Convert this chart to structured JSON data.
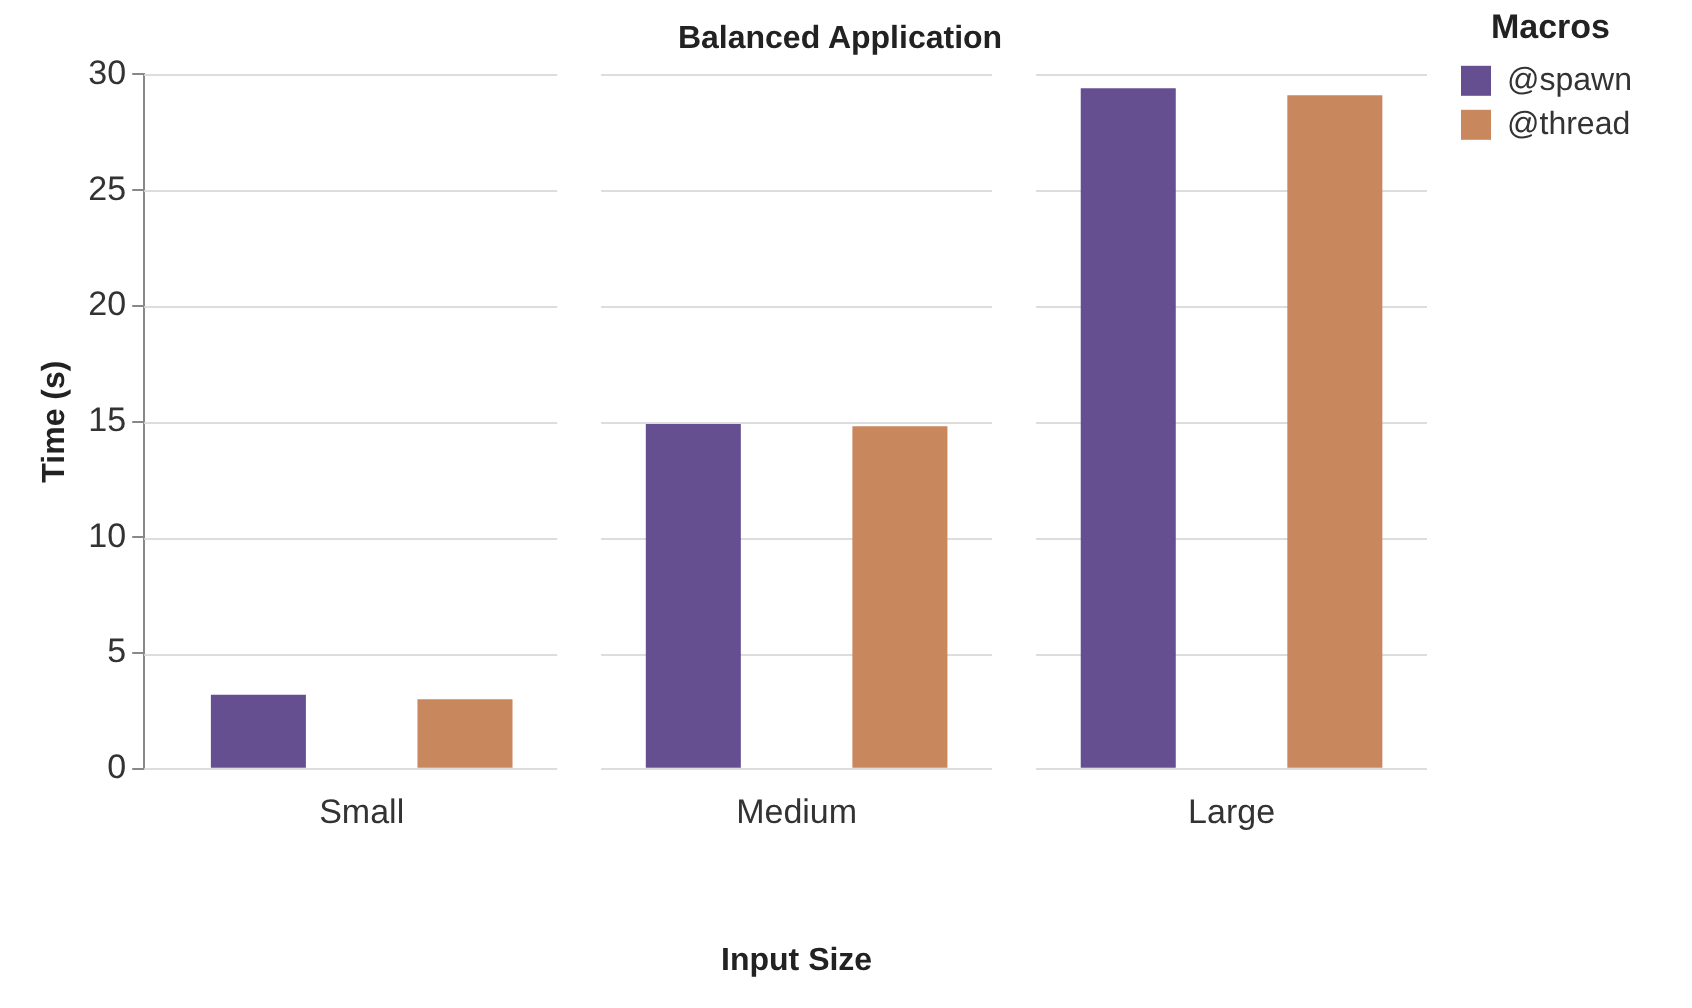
{
  "chart_data": {
    "type": "bar",
    "title": "Balanced Application",
    "xlabel": "Input Size",
    "ylabel": "Time (s)",
    "legend_title": "Macros",
    "categories": [
      "Small",
      "Medium",
      "Large"
    ],
    "series": [
      {
        "name": "@spawn",
        "color": "#664f91",
        "values": [
          3.2,
          14.9,
          29.4
        ]
      },
      {
        "name": "@thread",
        "color": "#c8875c",
        "values": [
          3.0,
          14.8,
          29.1
        ]
      }
    ],
    "ylim": [
      0,
      30
    ],
    "yticks": [
      0,
      5,
      10,
      15,
      20,
      25,
      30
    ],
    "grid": "y",
    "legend": "top right"
  }
}
